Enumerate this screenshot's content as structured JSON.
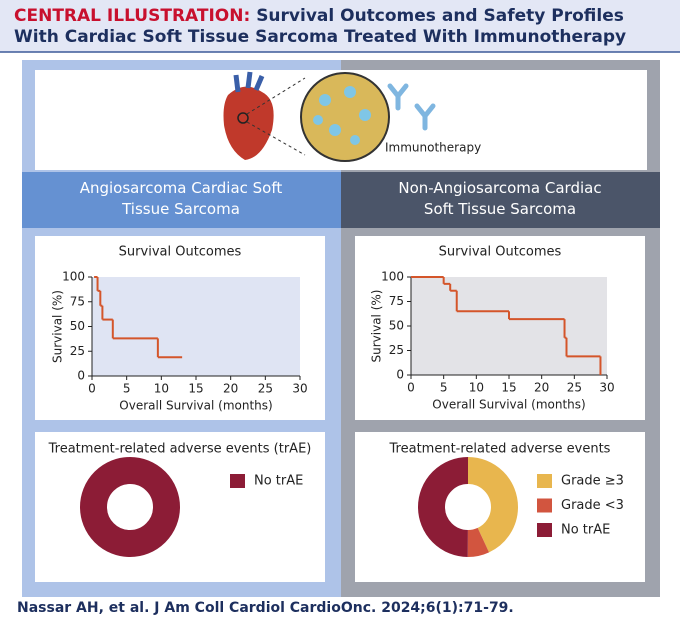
{
  "header": {
    "label": "CENTRAL ILLUSTRATION:",
    "title": "Survival Outcomes and Safety Profiles With Cardiac Soft Tissue Sarcoma Treated With Immunotherapy"
  },
  "illustration": {
    "label": "Immunotherapy"
  },
  "panels": [
    {
      "title": "Angiosarcoma Cardiac Soft Tissue Sarcoma"
    },
    {
      "title": "Non-Angiosarcoma Cardiac Soft Tissue Sarcoma"
    }
  ],
  "chart_data": [
    {
      "type": "line",
      "step": "post",
      "title": "Survival Outcomes",
      "x_label": "Overall Survival (months)",
      "y_label": "Survival (%)",
      "x": [
        0.3,
        0.8,
        1.2,
        1.5,
        3,
        9.5,
        13
      ],
      "values": [
        100,
        86,
        71,
        57,
        38,
        19,
        19
      ],
      "color": "#d4552a",
      "background": "#dfe4f3",
      "xlim": [
        0,
        30
      ],
      "xticks": [
        0,
        5,
        10,
        15,
        20,
        25,
        30
      ],
      "ylim": [
        0,
        100
      ],
      "yticks": [
        0,
        25,
        50,
        75,
        100
      ]
    },
    {
      "type": "line",
      "step": "post",
      "title": "Survival Outcomes",
      "x_label": "Overall Survival (months)",
      "y_label": "Survival (%)",
      "x": [
        0,
        5,
        6,
        7,
        15,
        23.5,
        23.8,
        29
      ],
      "values": [
        100,
        93,
        86,
        65,
        57,
        38,
        19,
        0
      ],
      "color": "#d4552a",
      "background": "#e3e3e7",
      "xlim": [
        0,
        30
      ],
      "xticks": [
        0,
        5,
        10,
        15,
        20,
        25,
        30
      ],
      "ylim": [
        0,
        100
      ],
      "yticks": [
        0,
        25,
        50,
        75,
        100
      ]
    },
    {
      "type": "pie",
      "donut": true,
      "title": "Treatment-related adverse events (trAE)",
      "legend": "right",
      "categories": [
        "No trAE"
      ],
      "values": [
        100
      ],
      "colors": [
        "#8c1c36"
      ]
    },
    {
      "type": "pie",
      "donut": true,
      "title": "Treatment-related adverse events",
      "legend": "right",
      "categories": [
        "Grade ≥3",
        "Grade <3",
        "No trAE"
      ],
      "values": [
        43,
        7,
        50
      ],
      "colors": [
        "#e8b64e",
        "#d2553f",
        "#8c1c36"
      ]
    }
  ]
}
